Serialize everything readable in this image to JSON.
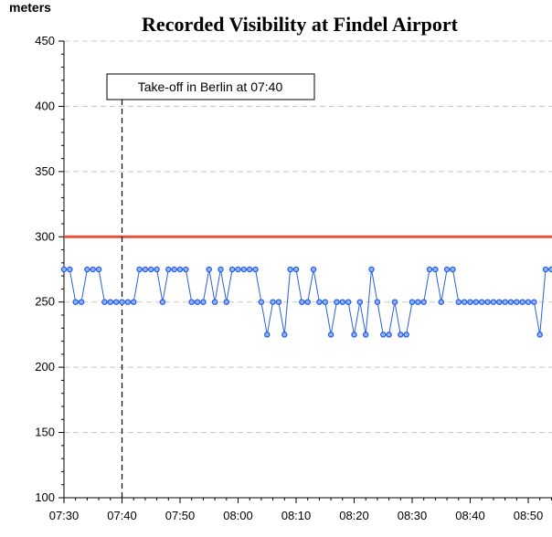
{
  "chart_data": {
    "type": "line",
    "title": "Recorded Visibility at Findel Airport",
    "ylabel": "meters",
    "xlabel": "",
    "ylim": [
      100,
      450
    ],
    "yticks": [
      100,
      150,
      200,
      250,
      300,
      350,
      400,
      450
    ],
    "xlim": [
      "07:30",
      "08:54"
    ],
    "xticks": [
      "07:30",
      "07:40",
      "07:50",
      "08:00",
      "08:10",
      "08:20",
      "08:30",
      "08:40",
      "08:50"
    ],
    "grid": "horizontal dashed",
    "threshold": {
      "value": 300,
      "color": "#e0523a"
    },
    "marker": {
      "time": "07:40",
      "label": "Take-off in Berlin at 07:40"
    },
    "series": [
      {
        "color": "#2a5fe0",
        "x": [
          "07:30",
          "07:31",
          "07:32",
          "07:33",
          "07:34",
          "07:35",
          "07:36",
          "07:37",
          "07:38",
          "07:39",
          "07:40",
          "07:41",
          "07:42",
          "07:43",
          "07:44",
          "07:45",
          "07:46",
          "07:47",
          "07:48",
          "07:49",
          "07:50",
          "07:51",
          "07:52",
          "07:53",
          "07:54",
          "07:55",
          "07:56",
          "07:57",
          "07:58",
          "07:59",
          "08:00",
          "08:01",
          "08:02",
          "08:03",
          "08:04",
          "08:05",
          "08:06",
          "08:07",
          "08:08",
          "08:09",
          "08:10",
          "08:11",
          "08:12",
          "08:13",
          "08:14",
          "08:15",
          "08:16",
          "08:17",
          "08:18",
          "08:19",
          "08:20",
          "08:21",
          "08:22",
          "08:23",
          "08:24",
          "08:25",
          "08:26",
          "08:27",
          "08:28",
          "08:29",
          "08:30",
          "08:31",
          "08:32",
          "08:33",
          "08:34",
          "08:35",
          "08:36",
          "08:37",
          "08:38",
          "08:39",
          "08:40",
          "08:41",
          "08:42",
          "08:43",
          "08:44",
          "08:45",
          "08:46",
          "08:47",
          "08:48",
          "08:49",
          "08:50",
          "08:51",
          "08:52",
          "08:53",
          "08:54"
        ],
        "values": [
          275,
          275,
          250,
          250,
          275,
          275,
          275,
          250,
          250,
          250,
          250,
          250,
          250,
          275,
          275,
          275,
          275,
          250,
          275,
          275,
          275,
          275,
          250,
          250,
          250,
          275,
          250,
          275,
          250,
          275,
          275,
          275,
          275,
          275,
          250,
          225,
          250,
          250,
          225,
          275,
          275,
          250,
          250,
          275,
          250,
          250,
          225,
          250,
          250,
          250,
          225,
          250,
          225,
          275,
          250,
          225,
          225,
          250,
          225,
          225,
          250,
          250,
          250,
          275,
          275,
          250,
          275,
          275,
          250,
          250,
          250,
          250,
          250,
          250,
          250,
          250,
          250,
          250,
          250,
          250,
          250,
          250,
          225,
          275,
          275
        ]
      }
    ]
  }
}
